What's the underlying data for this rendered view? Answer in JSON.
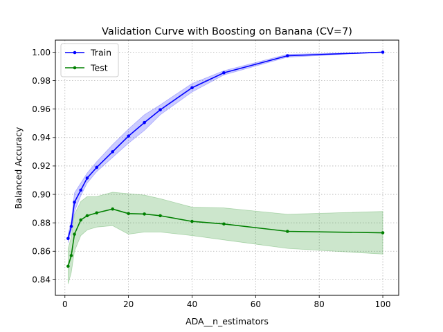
{
  "chart_data": {
    "type": "line",
    "title": "Validation Curve with Boosting on Banana (CV=7)",
    "xlabel": "ADA__n_estimators",
    "ylabel": "Balanced Accuracy",
    "xlim": [
      -3,
      105
    ],
    "ylim": [
      0.829,
      1.0085
    ],
    "xticks": [
      0,
      20,
      40,
      60,
      80,
      100
    ],
    "yticks": [
      0.84,
      0.86,
      0.88,
      0.9,
      0.92,
      0.94,
      0.96,
      0.98,
      1.0
    ],
    "ytick_labels": [
      "0.84",
      "0.86",
      "0.88",
      "0.90",
      "0.92",
      "0.94",
      "0.96",
      "0.98",
      "1.00"
    ],
    "grid": true,
    "legend_position": "top-left",
    "x": [
      1,
      2,
      3,
      5,
      7,
      10,
      15,
      20,
      25,
      30,
      40,
      50,
      70,
      100
    ],
    "series": [
      {
        "name": "Train",
        "color": "#0000ff",
        "band_color": "#0000ff",
        "values": [
          0.869,
          0.8775,
          0.8945,
          0.903,
          0.9115,
          0.919,
          0.93,
          0.941,
          0.9505,
          0.9595,
          0.975,
          0.9855,
          0.9975,
          1.0
        ],
        "lower": [
          0.866,
          0.874,
          0.888,
          0.899,
          0.908,
          0.916,
          0.926,
          0.936,
          0.945,
          0.956,
          0.972,
          0.984,
          0.9965,
          1.0
        ],
        "upper": [
          0.872,
          0.881,
          0.901,
          0.908,
          0.915,
          0.923,
          0.935,
          0.946,
          0.956,
          0.963,
          0.978,
          0.987,
          0.9985,
          1.0
        ]
      },
      {
        "name": "Test",
        "color": "#008000",
        "band_color": "#008000",
        "values": [
          0.8495,
          0.857,
          0.872,
          0.882,
          0.885,
          0.887,
          0.8897,
          0.8865,
          0.8862,
          0.885,
          0.881,
          0.8792,
          0.874,
          0.873
        ],
        "lower": [
          0.837,
          0.845,
          0.86,
          0.871,
          0.875,
          0.877,
          0.878,
          0.872,
          0.8735,
          0.8735,
          0.871,
          0.868,
          0.862,
          0.858
        ],
        "upper": [
          0.862,
          0.87,
          0.886,
          0.895,
          0.8985,
          0.8985,
          0.9015,
          0.9005,
          0.8995,
          0.897,
          0.891,
          0.8905,
          0.886,
          0.888
        ]
      }
    ]
  }
}
